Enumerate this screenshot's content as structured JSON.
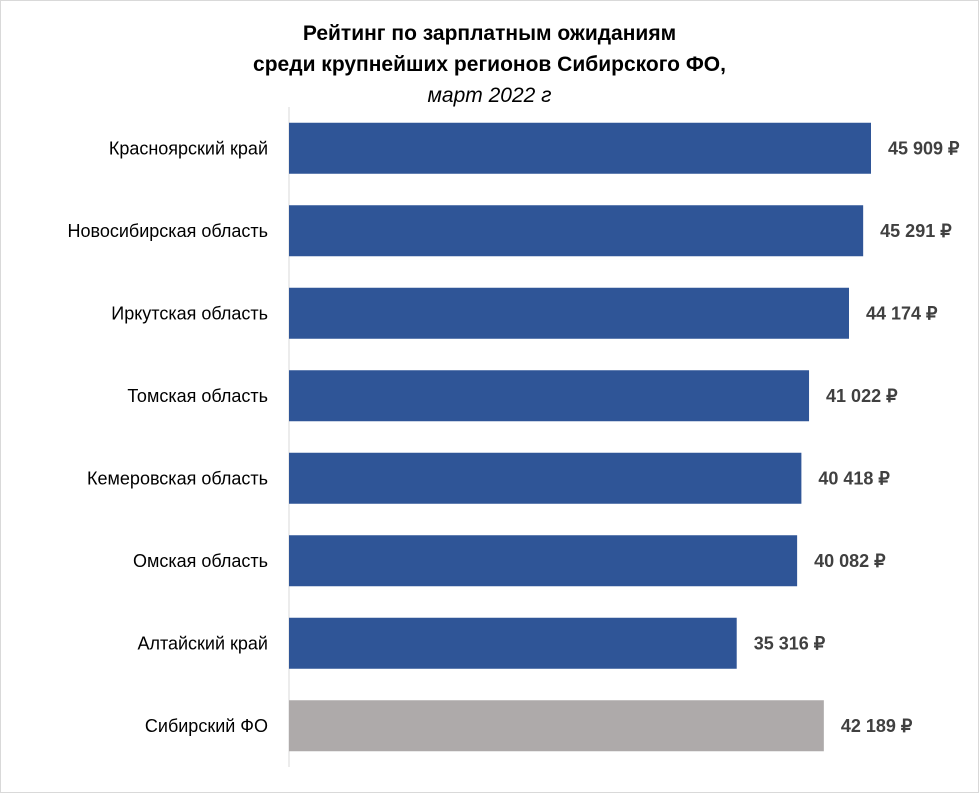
{
  "chart_data": {
    "type": "bar",
    "orientation": "horizontal",
    "title": "Рейтинг по зарплатным ожиданиям",
    "title_line2": "среди крупнейших регионов Сибирского ФО,",
    "subtitle": "март 2022 г",
    "categories": [
      "Красноярский край",
      "Новосибирская область",
      "Иркутская область",
      "Томская область",
      "Кемеровская область",
      "Омская область",
      "Алтайский край",
      "Сибирский ФО"
    ],
    "values": [
      45909,
      45291,
      44174,
      41022,
      40418,
      40082,
      35316,
      42189
    ],
    "value_labels": [
      "45 909 ₽",
      "45 291 ₽",
      "44 174 ₽",
      "41 022 ₽",
      "40 418 ₽",
      "40 082 ₽",
      "35 316 ₽",
      "42 189 ₽"
    ],
    "colors": [
      "#2F5597",
      "#2F5597",
      "#2F5597",
      "#2F5597",
      "#2F5597",
      "#2F5597",
      "#2F5597",
      "#AEAAAA"
    ],
    "xlim": [
      0,
      50000
    ],
    "grid": false,
    "legend": "none"
  },
  "colors": {
    "bar": "#2F5597",
    "total_bar": "#AEAAAA",
    "axis": "#d9d9d9",
    "value_text": "#404040"
  }
}
